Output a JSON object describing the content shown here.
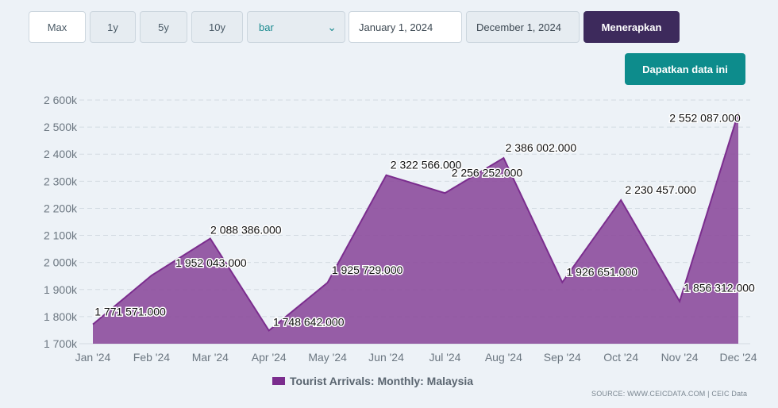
{
  "toolbar": {
    "max_label": "Max",
    "y1_label": "1y",
    "y5_label": "5y",
    "y10_label": "10y",
    "chart_type_value": "bar",
    "start_date": "January 1, 2024",
    "end_date": "December 1, 2024",
    "apply_label": "Menerapkan",
    "get_data_label": "Dapatkan data ini"
  },
  "legend": {
    "label": "Tourist Arrivals: Monthly: Malaysia"
  },
  "source": "SOURCE: WWW.CEICDATA.COM | CEIC Data",
  "chart_data": {
    "type": "area",
    "categories": [
      "Jan '24",
      "Feb '24",
      "Mar '24",
      "Apr '24",
      "May '24",
      "Jun '24",
      "Jul '24",
      "Aug '24",
      "Sep '24",
      "Oct '24",
      "Nov '24",
      "Dec '24"
    ],
    "series": [
      {
        "name": "Tourist Arrivals: Monthly: Malaysia",
        "values": [
          1771571,
          1952043,
          2088386,
          1748642,
          1925729,
          2322566,
          2256252,
          2386002,
          1926651,
          2230457,
          1856312,
          2552087
        ],
        "labels": [
          "1 771 571.000",
          "1 952 043.000",
          "2 088 386.000",
          "1 748 642.000",
          "1 925 729.000",
          "2 322 566.000",
          "2 256 252.000",
          "2 386 002.000",
          "1 926 651.000",
          "2 230 457.000",
          "1 856 312.000",
          "2 552 087.000"
        ]
      }
    ],
    "y_ticks": [
      1700000,
      1800000,
      1900000,
      2000000,
      2100000,
      2200000,
      2300000,
      2400000,
      2500000,
      2600000
    ],
    "y_tick_labels": [
      "1 700k",
      "1 800k",
      "1 900k",
      "2 000k",
      "2 100k",
      "2 200k",
      "2 300k",
      "2 400k",
      "2 500k",
      "2 600k"
    ],
    "ylim": [
      1700000,
      2600000
    ],
    "grid": true,
    "legend_position": "bottom-center",
    "colors": {
      "fill": "#8c4d9c",
      "line": "#7b2d8e",
      "swatch": "#7b2d8e",
      "grid": "#d3dbe2"
    }
  }
}
